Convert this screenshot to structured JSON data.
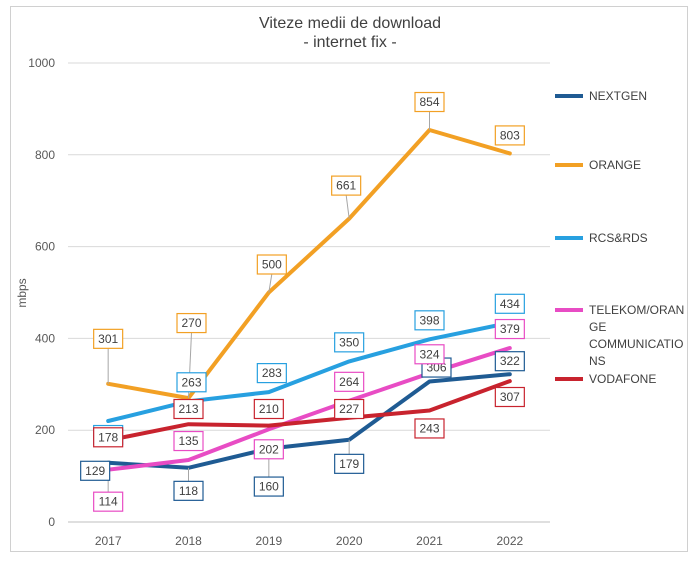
{
  "chart_data": {
    "type": "line",
    "title": "Viteze medii de download",
    "subtitle": "- internet fix -",
    "ylabel": "mbps",
    "xlabel": "",
    "ylim": [
      0,
      1000
    ],
    "yticks": [
      0,
      200,
      400,
      600,
      800,
      1000
    ],
    "grid": true,
    "legend_position": "right",
    "categories": [
      "2017",
      "2018",
      "2019",
      "2020",
      "2021",
      "2022"
    ],
    "series": [
      {
        "name": "NEXTGEN",
        "color": "#1f5b93",
        "values": [
          129,
          118,
          160,
          179,
          306,
          322
        ]
      },
      {
        "name": "ORANGE",
        "color": "#f2a024",
        "values": [
          301,
          270,
          500,
          661,
          854,
          803
        ]
      },
      {
        "name": "RCS&RDS",
        "color": "#27a0e0",
        "values": [
          220,
          263,
          283,
          350,
          398,
          434
        ]
      },
      {
        "name": "TELEKOM/ORANGE COMMUNICATIONS",
        "legend_lines": [
          "TELEKOM/ORAN",
          "GE",
          "COMMUNICATIO",
          "NS"
        ],
        "color": "#e84cc4",
        "values": [
          114,
          135,
          202,
          264,
          324,
          379
        ]
      },
      {
        "name": "VODAFONE",
        "color": "#c8232e",
        "values": [
          178,
          213,
          210,
          227,
          243,
          307
        ]
      }
    ]
  }
}
